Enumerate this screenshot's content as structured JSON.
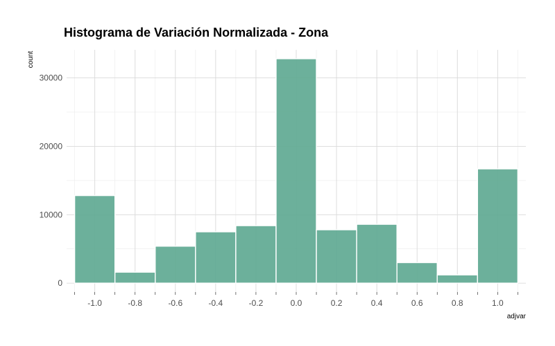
{
  "chart_data": {
    "type": "bar",
    "title": "Histograma de Variación Normalizada - Zona",
    "xlabel": "adjvar",
    "ylabel": "count",
    "bar_color": "#5fa993",
    "bar_stroke": "#ffffff",
    "bins": [
      {
        "x0": -1.1,
        "x1": -0.9,
        "count": 12800
      },
      {
        "x0": -0.9,
        "x1": -0.7,
        "count": 1600
      },
      {
        "x0": -0.7,
        "x1": -0.5,
        "count": 5400
      },
      {
        "x0": -0.5,
        "x1": -0.3,
        "count": 7500
      },
      {
        "x0": -0.3,
        "x1": -0.1,
        "count": 8400
      },
      {
        "x0": -0.1,
        "x1": 0.1,
        "count": 32800
      },
      {
        "x0": 0.1,
        "x1": 0.3,
        "count": 7800
      },
      {
        "x0": 0.3,
        "x1": 0.5,
        "count": 8600
      },
      {
        "x0": 0.5,
        "x1": 0.7,
        "count": 3000
      },
      {
        "x0": 0.7,
        "x1": 0.9,
        "count": 1200
      },
      {
        "x0": 0.9,
        "x1": 1.1,
        "count": 16700
      }
    ],
    "xticks": [
      {
        "value": -1.0,
        "label": "-1.0"
      },
      {
        "value": -0.8,
        "label": "-0.8"
      },
      {
        "value": -0.6,
        "label": "-0.6"
      },
      {
        "value": -0.4,
        "label": "-0.4"
      },
      {
        "value": -0.2,
        "label": "-0.2"
      },
      {
        "value": 0.0,
        "label": "0.0"
      },
      {
        "value": 0.2,
        "label": "0.2"
      },
      {
        "value": 0.4,
        "label": "0.4"
      },
      {
        "value": 0.6,
        "label": "0.6"
      },
      {
        "value": 0.8,
        "label": "0.8"
      },
      {
        "value": 1.0,
        "label": "1.0"
      }
    ],
    "yticks": [
      {
        "value": 0,
        "label": "0"
      },
      {
        "value": 10000,
        "label": "10000"
      },
      {
        "value": 20000,
        "label": "20000"
      },
      {
        "value": 30000,
        "label": "30000"
      }
    ],
    "xlim": [
      -1.14,
      1.14
    ],
    "ylim": [
      -1300,
      34100
    ],
    "grid": true,
    "legend": "none"
  }
}
